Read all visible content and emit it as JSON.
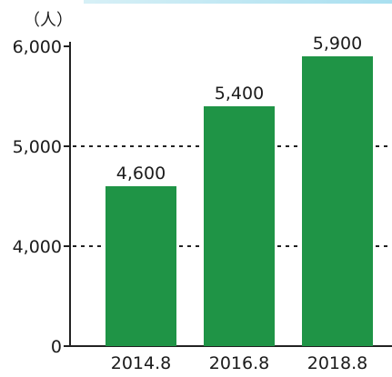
{
  "chart_data": {
    "type": "bar",
    "unit_label": "（人）",
    "categories": [
      "2014.8",
      "2016.8",
      "2018.8"
    ],
    "values": [
      4600,
      5400,
      5900
    ],
    "value_labels": [
      "4,600",
      "5,400",
      "5,900"
    ],
    "y_ticks": [
      {
        "value": 0,
        "label": "0"
      },
      {
        "value": 4000,
        "label": "4,000"
      },
      {
        "value": 5000,
        "label": "5,000"
      },
      {
        "value": 6000,
        "label": "6,000"
      }
    ],
    "ylim": [
      0,
      6000
    ],
    "axis_break": {
      "from": 0,
      "to": 3000
    },
    "gridlines_dashed": [
      4000,
      5000
    ],
    "bar_color": "#1f9446",
    "grid": "dashed horizontal at 4,000 and 5,000",
    "legend": "none"
  }
}
